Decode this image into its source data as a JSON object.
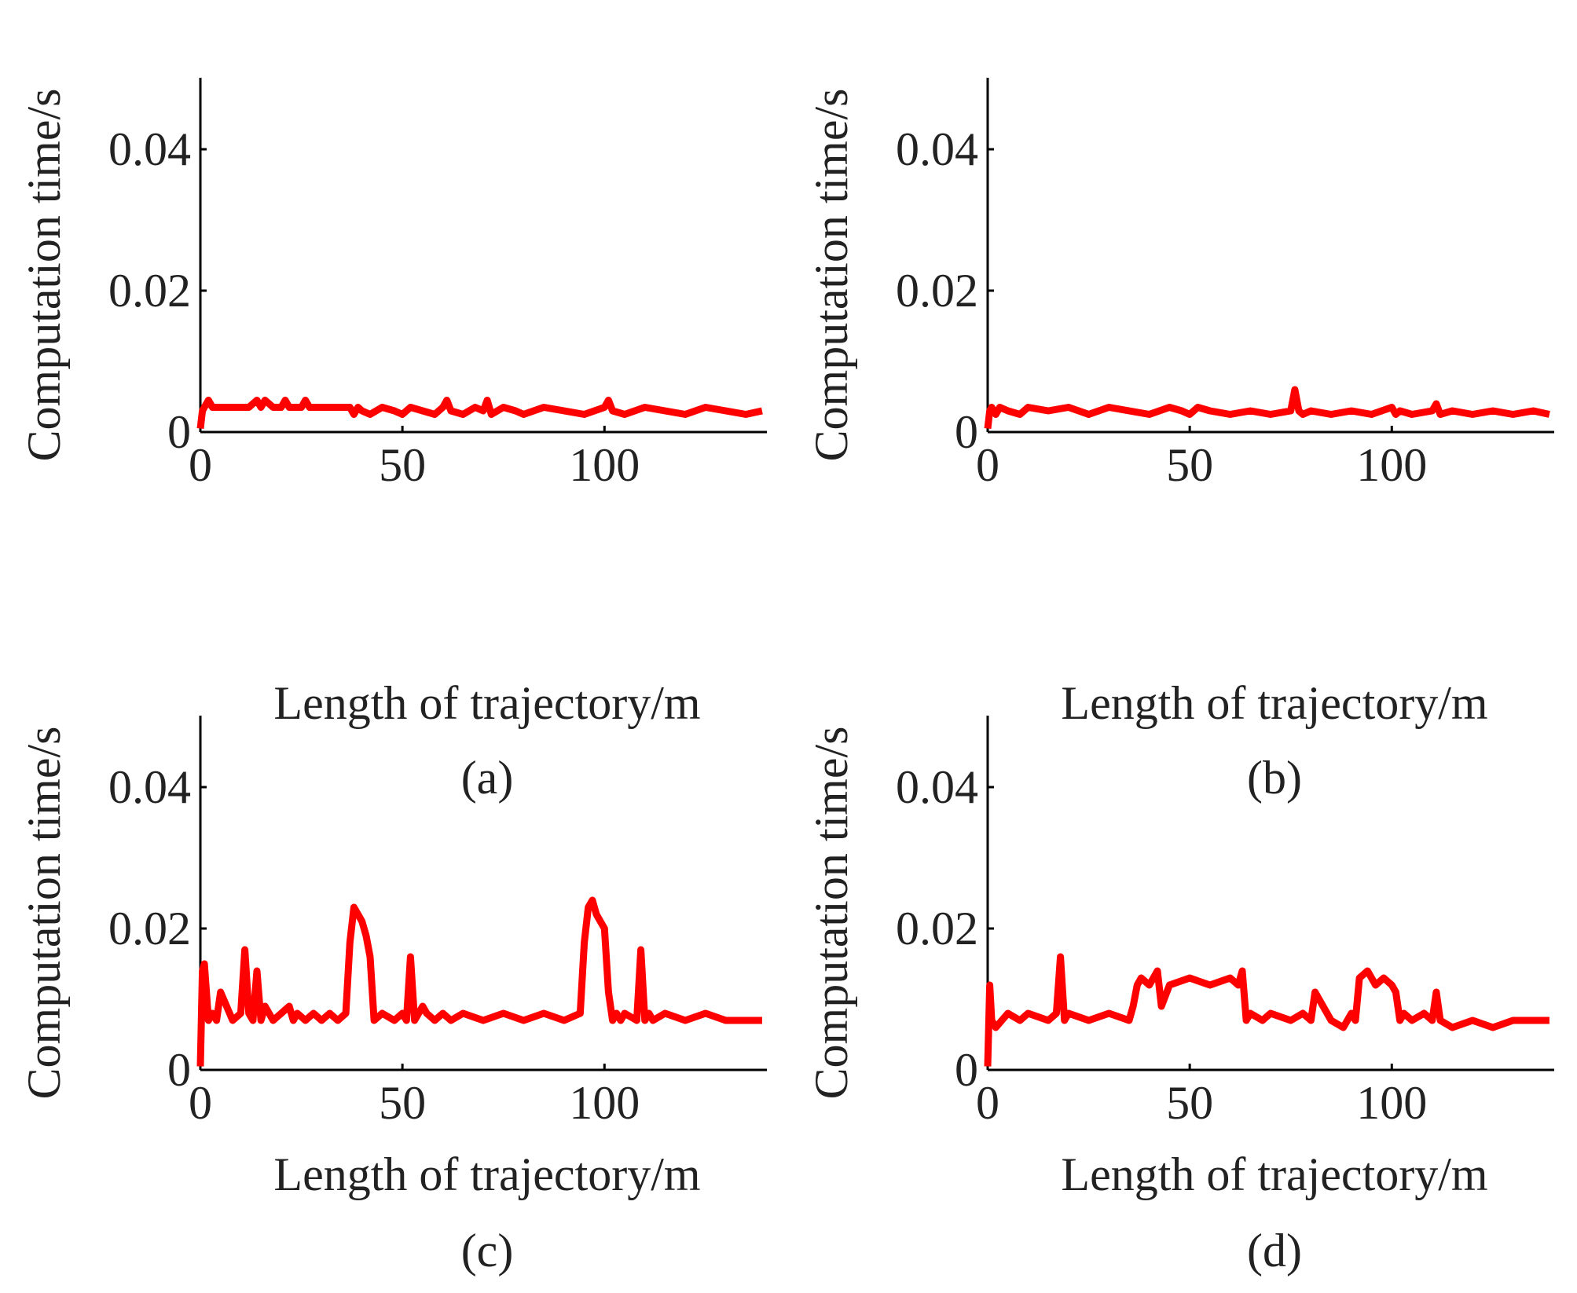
{
  "chart_data": [
    {
      "type": "line",
      "panel": "a",
      "caption": "(a)",
      "xlabel": "Length of trajectory/m",
      "ylabel": "Computation time/s",
      "xlim": [
        0,
        140
      ],
      "ylim": [
        0,
        0.05
      ],
      "xticks": [
        0,
        50,
        100
      ],
      "xtick_labels": [
        "0",
        "50",
        "100"
      ],
      "yticks": [
        0,
        0.02,
        0.04
      ],
      "ytick_labels": [
        "0",
        "0.02",
        "0.04"
      ],
      "grid": false,
      "color": "#ff0000",
      "series": [
        {
          "name": "computation time",
          "x": [
            0,
            0.5,
            1,
            2,
            3,
            5,
            8,
            10,
            12,
            14,
            15,
            16,
            18,
            20,
            21,
            22,
            25,
            26,
            27,
            30,
            33,
            35,
            37,
            38,
            39,
            40,
            42,
            45,
            48,
            50,
            52,
            55,
            58,
            60,
            61,
            62,
            65,
            68,
            70,
            71,
            72,
            75,
            78,
            80,
            85,
            90,
            95,
            100,
            101,
            102,
            105,
            110,
            115,
            120,
            125,
            130,
            135,
            139
          ],
          "values": [
            0.0005,
            0.003,
            0.0035,
            0.0045,
            0.0035,
            0.0035,
            0.0035,
            0.0035,
            0.0035,
            0.0045,
            0.0035,
            0.0045,
            0.0035,
            0.0035,
            0.0045,
            0.0035,
            0.0035,
            0.0045,
            0.0035,
            0.0035,
            0.0035,
            0.0035,
            0.0035,
            0.0025,
            0.0035,
            0.003,
            0.0025,
            0.0035,
            0.003,
            0.0025,
            0.0035,
            0.003,
            0.0025,
            0.0035,
            0.0045,
            0.003,
            0.0025,
            0.0035,
            0.003,
            0.0045,
            0.0025,
            0.0035,
            0.003,
            0.0025,
            0.0035,
            0.003,
            0.0025,
            0.0035,
            0.0045,
            0.003,
            0.0025,
            0.0035,
            0.003,
            0.0025,
            0.0035,
            0.003,
            0.0025,
            0.003
          ]
        }
      ]
    },
    {
      "type": "line",
      "panel": "b",
      "caption": "(b)",
      "xlabel": "Length of trajectory/m",
      "ylabel": "Computation time/s",
      "xlim": [
        0,
        140
      ],
      "ylim": [
        0,
        0.05
      ],
      "xticks": [
        0,
        50,
        100
      ],
      "xtick_labels": [
        "0",
        "50",
        "100"
      ],
      "yticks": [
        0,
        0.02,
        0.04
      ],
      "ytick_labels": [
        "0",
        "0.02",
        "0.04"
      ],
      "grid": false,
      "color": "#ff0000",
      "series": [
        {
          "name": "computation time",
          "x": [
            0,
            0.5,
            1,
            2,
            3,
            5,
            8,
            10,
            15,
            20,
            25,
            30,
            35,
            40,
            45,
            48,
            50,
            52,
            55,
            60,
            65,
            70,
            75,
            76,
            77,
            78,
            80,
            85,
            90,
            95,
            100,
            101,
            102,
            105,
            110,
            111,
            112,
            115,
            120,
            125,
            130,
            135,
            139
          ],
          "values": [
            0.0005,
            0.003,
            0.0035,
            0.0025,
            0.0035,
            0.003,
            0.0025,
            0.0035,
            0.003,
            0.0035,
            0.0025,
            0.0035,
            0.003,
            0.0025,
            0.0035,
            0.003,
            0.0025,
            0.0035,
            0.003,
            0.0025,
            0.003,
            0.0025,
            0.003,
            0.006,
            0.003,
            0.0025,
            0.003,
            0.0025,
            0.003,
            0.0025,
            0.0035,
            0.0025,
            0.003,
            0.0025,
            0.003,
            0.004,
            0.0025,
            0.003,
            0.0025,
            0.003,
            0.0025,
            0.003,
            0.0025
          ]
        }
      ]
    },
    {
      "type": "line",
      "panel": "c",
      "caption": "(c)",
      "xlabel": "Length of trajectory/m",
      "ylabel": "Computation time/s",
      "xlim": [
        0,
        140
      ],
      "ylim": [
        0,
        0.05
      ],
      "xticks": [
        0,
        50,
        100
      ],
      "xtick_labels": [
        "0",
        "50",
        "100"
      ],
      "yticks": [
        0,
        0.02,
        0.04
      ],
      "ytick_labels": [
        "0",
        "0.02",
        "0.04"
      ],
      "grid": false,
      "color": "#ff0000",
      "series": [
        {
          "name": "computation time",
          "x": [
            0,
            0.5,
            1,
            2,
            3,
            4,
            5,
            8,
            10,
            11,
            12,
            13,
            14,
            15,
            16,
            18,
            20,
            22,
            23,
            24,
            26,
            28,
            30,
            32,
            34,
            36,
            37,
            38,
            39,
            40,
            41,
            42,
            43,
            45,
            48,
            50,
            51,
            52,
            53,
            55,
            56,
            58,
            60,
            62,
            65,
            70,
            75,
            80,
            85,
            90,
            94,
            95,
            96,
            97,
            98,
            99,
            100,
            101,
            102,
            103,
            104,
            105,
            108,
            109,
            110,
            111,
            112,
            115,
            120,
            125,
            130,
            135,
            139
          ],
          "values": [
            0.0005,
            0.014,
            0.015,
            0.007,
            0.008,
            0.007,
            0.011,
            0.007,
            0.008,
            0.017,
            0.008,
            0.007,
            0.014,
            0.007,
            0.009,
            0.007,
            0.008,
            0.009,
            0.007,
            0.008,
            0.007,
            0.008,
            0.007,
            0.008,
            0.007,
            0.008,
            0.018,
            0.023,
            0.022,
            0.021,
            0.019,
            0.016,
            0.007,
            0.008,
            0.007,
            0.008,
            0.007,
            0.016,
            0.007,
            0.009,
            0.008,
            0.007,
            0.008,
            0.007,
            0.008,
            0.007,
            0.008,
            0.007,
            0.008,
            0.007,
            0.008,
            0.018,
            0.023,
            0.024,
            0.022,
            0.021,
            0.02,
            0.011,
            0.007,
            0.008,
            0.007,
            0.008,
            0.007,
            0.017,
            0.007,
            0.008,
            0.007,
            0.008,
            0.007,
            0.008,
            0.007,
            0.007,
            0.007
          ]
        }
      ]
    },
    {
      "type": "line",
      "panel": "d",
      "caption": "(d)",
      "xlabel": "Length of trajectory/m",
      "ylabel": "Computation time/s",
      "xlim": [
        0,
        140
      ],
      "ylim": [
        0,
        0.05
      ],
      "xticks": [
        0,
        50,
        100
      ],
      "xtick_labels": [
        "0",
        "50",
        "100"
      ],
      "yticks": [
        0,
        0.02,
        0.04
      ],
      "ytick_labels": [
        "0",
        "0.02",
        "0.04"
      ],
      "grid": false,
      "color": "#ff0000",
      "series": [
        {
          "name": "computation time",
          "x": [
            0,
            0.5,
            1,
            2,
            5,
            8,
            10,
            15,
            17,
            18,
            19,
            20,
            25,
            30,
            35,
            36,
            37,
            38,
            40,
            42,
            43,
            45,
            50,
            55,
            60,
            62,
            63,
            64,
            65,
            68,
            70,
            75,
            78,
            80,
            81,
            85,
            88,
            90,
            91,
            92,
            94,
            96,
            98,
            100,
            101,
            102,
            103,
            105,
            108,
            110,
            111,
            112,
            115,
            120,
            125,
            130,
            135,
            139
          ],
          "values": [
            0.0005,
            0.012,
            0.007,
            0.006,
            0.008,
            0.007,
            0.008,
            0.007,
            0.008,
            0.016,
            0.007,
            0.008,
            0.007,
            0.008,
            0.007,
            0.009,
            0.012,
            0.013,
            0.012,
            0.014,
            0.009,
            0.012,
            0.013,
            0.012,
            0.013,
            0.012,
            0.014,
            0.007,
            0.008,
            0.007,
            0.008,
            0.007,
            0.008,
            0.007,
            0.011,
            0.007,
            0.006,
            0.008,
            0.007,
            0.013,
            0.014,
            0.012,
            0.013,
            0.012,
            0.011,
            0.007,
            0.008,
            0.007,
            0.008,
            0.007,
            0.011,
            0.007,
            0.006,
            0.007,
            0.006,
            0.007,
            0.007,
            0.007
          ]
        }
      ]
    }
  ]
}
